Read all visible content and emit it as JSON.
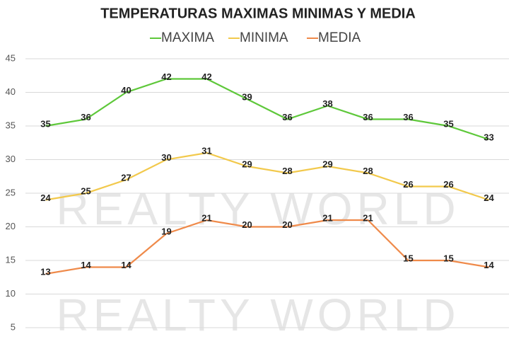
{
  "chart_data": {
    "type": "line",
    "title": "TEMPERATURAS MAXIMAS MINIMAS Y MEDIA",
    "categories": [
      null,
      null,
      null,
      null,
      null,
      null,
      null,
      null,
      null,
      null,
      null,
      null
    ],
    "series": [
      {
        "name": "MAXIMA",
        "color": "#5ec83a",
        "values": [
          35,
          36,
          40,
          42,
          42,
          39,
          36,
          38,
          36,
          36,
          35,
          33
        ]
      },
      {
        "name": "MINIMA",
        "color": "#f2c94c",
        "values": [
          24,
          25,
          27,
          30,
          31,
          29,
          28,
          29,
          28,
          26,
          26,
          24
        ]
      },
      {
        "name": "MEDIA",
        "color": "#ef8a4a",
        "values": [
          13,
          14,
          14,
          19,
          21,
          20,
          20,
          21,
          21,
          15,
          15,
          14
        ]
      }
    ],
    "ylim": [
      5,
      45
    ],
    "yticks": [
      5,
      10,
      15,
      20,
      25,
      30,
      35,
      40,
      45
    ],
    "grid": true,
    "watermark": "REALTY WORLD"
  }
}
